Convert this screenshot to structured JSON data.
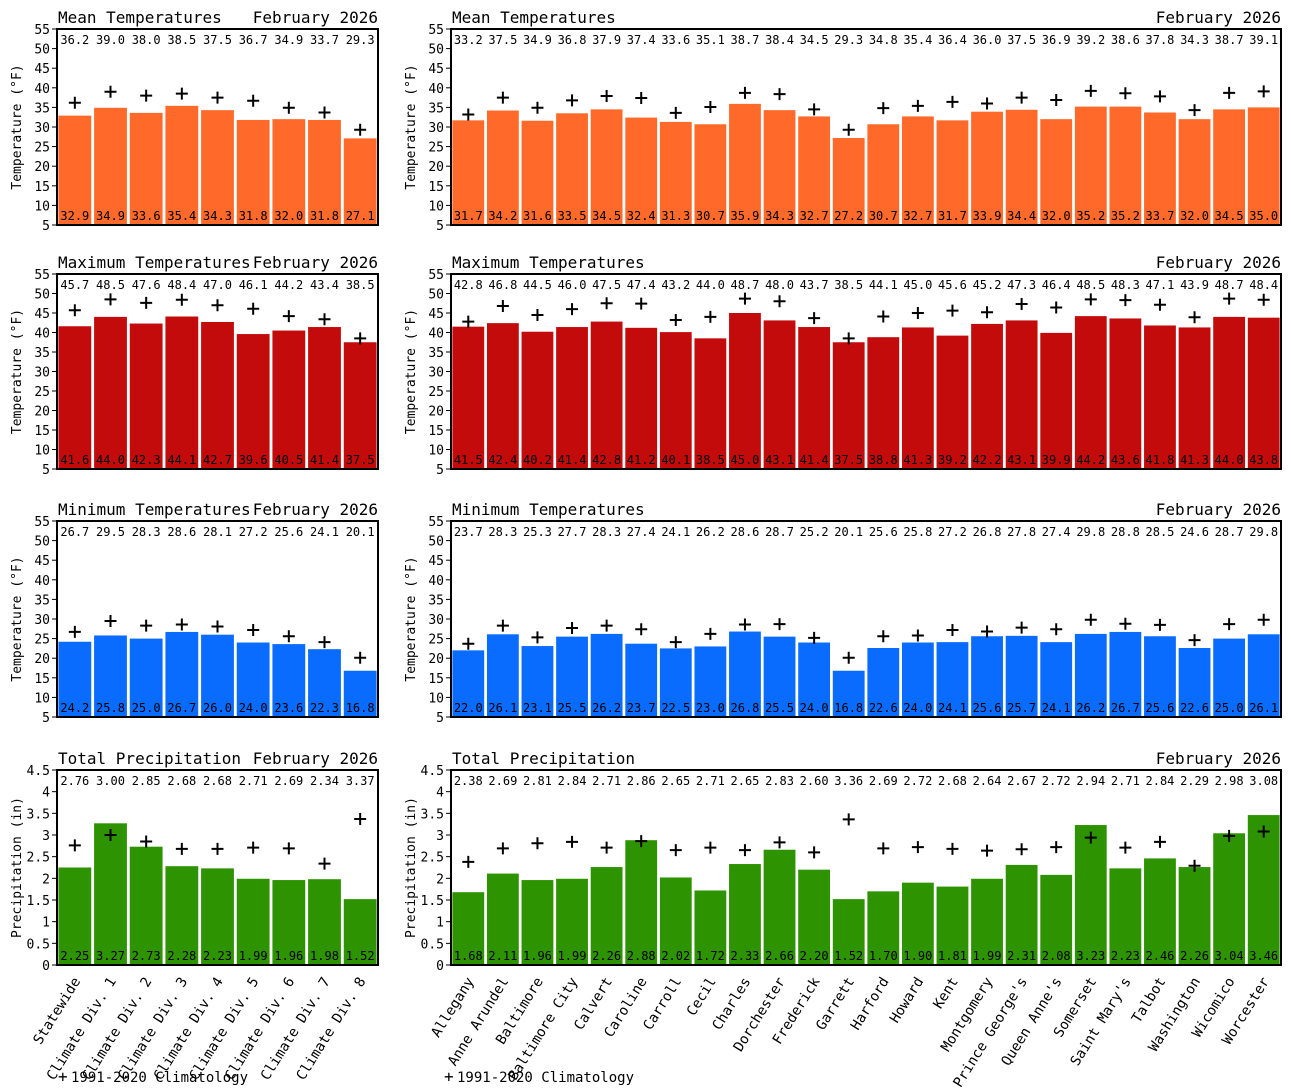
{
  "colors": {
    "mean": "#ff6a2a",
    "max": "#c40b0b",
    "min": "#0a6cff",
    "precip": "#2e9300",
    "axis": "#000000",
    "text": "#000000"
  },
  "legend_text": "1991-2020 Climatology",
  "legend_symbol": "+",
  "region_labels": {
    "divisions": [
      "Statewide",
      "Climate Div. 1",
      "Climate Div. 2",
      "Climate Div. 3",
      "Climate Div. 4",
      "Climate Div. 5",
      "Climate Div. 6",
      "Climate Div. 7",
      "Climate Div. 8"
    ],
    "counties": [
      "Allegany",
      "Anne Arundel",
      "Baltimore",
      "Baltimore City",
      "Calvert",
      "Caroline",
      "Carroll",
      "Cecil",
      "Charles",
      "Dorchester",
      "Frederick",
      "Garrett",
      "Harford",
      "Howard",
      "Kent",
      "Montgomery",
      "Prince George's",
      "Queen Anne's",
      "Somerset",
      "Saint Mary's",
      "Talbot",
      "Washington",
      "Wicomico",
      "Worcester"
    ]
  },
  "chart_data": [
    {
      "id": "mean-div",
      "type": "bar",
      "title": "Mean Temperatures",
      "date": "February 2026",
      "ylabel": "Temperature (°F)",
      "ylim": [
        5,
        55
      ],
      "yticks": [
        5,
        10,
        15,
        20,
        25,
        30,
        35,
        40,
        45,
        50,
        55
      ],
      "categories_key": "divisions",
      "series": [
        {
          "name": "Observed",
          "values": [
            32.9,
            34.9,
            33.6,
            35.4,
            34.3,
            31.8,
            32.0,
            31.8,
            27.1
          ]
        },
        {
          "name": "1991-2020 Climatology",
          "values": [
            36.2,
            39.0,
            38.0,
            38.5,
            37.5,
            36.7,
            34.9,
            33.7,
            29.3
          ]
        }
      ],
      "observed_labels": [
        "32.9",
        "34.9",
        "33.6",
        "35.4",
        "34.3",
        "31.8",
        "32.0",
        "31.8",
        "27.1"
      ],
      "normal_labels": [
        "36.2",
        "39.0",
        "38.0",
        "38.5",
        "37.5",
        "36.7",
        "34.9",
        "33.7",
        "29.3"
      ]
    },
    {
      "id": "mean-cty",
      "type": "bar",
      "title": "Mean Temperatures",
      "date": "February 2026",
      "ylabel": "Temperature (°F)",
      "ylim": [
        5,
        55
      ],
      "yticks": [
        5,
        10,
        15,
        20,
        25,
        30,
        35,
        40,
        45,
        50,
        55
      ],
      "categories_key": "counties",
      "series": [
        {
          "name": "Observed",
          "values": [
            31.7,
            34.2,
            31.6,
            33.5,
            34.5,
            32.4,
            31.3,
            30.7,
            35.9,
            34.3,
            32.7,
            27.2,
            30.7,
            32.7,
            31.7,
            33.9,
            34.4,
            32.0,
            35.2,
            35.2,
            33.7,
            32.0,
            34.5,
            35.0
          ]
        },
        {
          "name": "1991-2020 Climatology",
          "values": [
            33.2,
            37.5,
            34.9,
            36.8,
            37.9,
            37.4,
            33.6,
            35.1,
            38.7,
            38.4,
            34.5,
            29.3,
            34.8,
            35.4,
            36.4,
            36.0,
            37.5,
            36.9,
            39.2,
            38.6,
            37.8,
            34.3,
            38.7,
            39.1
          ]
        }
      ],
      "observed_labels": [
        "31.7",
        "34.2",
        "31.6",
        "33.5",
        "34.5",
        "32.4",
        "31.3",
        "30.7",
        "35.9",
        "34.3",
        "32.7",
        "27.2",
        "30.7",
        "32.7",
        "31.7",
        "33.9",
        "34.4",
        "32.0",
        "35.2",
        "35.2",
        "33.7",
        "32.0",
        "34.5",
        "35.0"
      ],
      "normal_labels": [
        "33.2",
        "37.5",
        "34.9",
        "36.8",
        "37.9",
        "37.4",
        "33.6",
        "35.1",
        "38.7",
        "38.4",
        "34.5",
        "29.3",
        "34.8",
        "35.4",
        "36.4",
        "36.0",
        "37.5",
        "36.9",
        "39.2",
        "38.6",
        "37.8",
        "34.3",
        "38.7",
        "39.1"
      ]
    },
    {
      "id": "max-div",
      "type": "bar",
      "title": "Maximum Temperatures",
      "date": "February 2026",
      "ylabel": "Temperature (°F)",
      "ylim": [
        5,
        55
      ],
      "yticks": [
        5,
        10,
        15,
        20,
        25,
        30,
        35,
        40,
        45,
        50,
        55
      ],
      "categories_key": "divisions",
      "series": [
        {
          "name": "Observed",
          "values": [
            41.6,
            44.0,
            42.3,
            44.1,
            42.7,
            39.6,
            40.5,
            41.4,
            37.5
          ]
        },
        {
          "name": "1991-2020 Climatology",
          "values": [
            45.7,
            48.5,
            47.6,
            48.4,
            47.0,
            46.1,
            44.2,
            43.4,
            38.5
          ]
        }
      ],
      "observed_labels": [
        "41.6",
        "44.0",
        "42.3",
        "44.1",
        "42.7",
        "39.6",
        "40.5",
        "41.4",
        "37.5"
      ],
      "normal_labels": [
        "45.7",
        "48.5",
        "47.6",
        "48.4",
        "47.0",
        "46.1",
        "44.2",
        "43.4",
        "38.5"
      ]
    },
    {
      "id": "max-cty",
      "type": "bar",
      "title": "Maximum Temperatures",
      "date": "February 2026",
      "ylabel": "Temperature (°F)",
      "ylim": [
        5,
        55
      ],
      "yticks": [
        5,
        10,
        15,
        20,
        25,
        30,
        35,
        40,
        45,
        50,
        55
      ],
      "categories_key": "counties",
      "series": [
        {
          "name": "Observed",
          "values": [
            41.5,
            42.4,
            40.2,
            41.4,
            42.8,
            41.2,
            40.1,
            38.5,
            45.0,
            43.1,
            41.4,
            37.5,
            38.8,
            41.3,
            39.2,
            42.2,
            43.1,
            39.9,
            44.2,
            43.6,
            41.8,
            41.3,
            44.0,
            43.8
          ]
        },
        {
          "name": "1991-2020 Climatology",
          "values": [
            42.8,
            46.8,
            44.5,
            46.0,
            47.5,
            47.4,
            43.2,
            44.0,
            48.7,
            48.0,
            43.7,
            38.5,
            44.1,
            45.0,
            45.6,
            45.2,
            47.3,
            46.4,
            48.5,
            48.3,
            47.1,
            43.9,
            48.7,
            48.4
          ]
        }
      ],
      "observed_labels": [
        "41.5",
        "42.4",
        "40.2",
        "41.4",
        "42.8",
        "41.2",
        "40.1",
        "38.5",
        "45.0",
        "43.1",
        "41.4",
        "37.5",
        "38.8",
        "41.3",
        "39.2",
        "42.2",
        "43.1",
        "39.9",
        "44.2",
        "43.6",
        "41.8",
        "41.3",
        "44.0",
        "43.8"
      ],
      "normal_labels": [
        "42.8",
        "46.8",
        "44.5",
        "46.0",
        "47.5",
        "47.4",
        "43.2",
        "44.0",
        "48.7",
        "48.0",
        "43.7",
        "38.5",
        "44.1",
        "45.0",
        "45.6",
        "45.2",
        "47.3",
        "46.4",
        "48.5",
        "48.3",
        "47.1",
        "43.9",
        "48.7",
        "48.4"
      ]
    },
    {
      "id": "min-div",
      "type": "bar",
      "title": "Minimum Temperatures",
      "date": "February 2026",
      "ylabel": "Temperature (°F)",
      "ylim": [
        5,
        55
      ],
      "yticks": [
        5,
        10,
        15,
        20,
        25,
        30,
        35,
        40,
        45,
        50,
        55
      ],
      "categories_key": "divisions",
      "series": [
        {
          "name": "Observed",
          "values": [
            24.2,
            25.8,
            25.0,
            26.7,
            26.0,
            24.0,
            23.6,
            22.3,
            16.8
          ]
        },
        {
          "name": "1991-2020 Climatology",
          "values": [
            26.7,
            29.5,
            28.3,
            28.6,
            28.1,
            27.2,
            25.6,
            24.1,
            20.1
          ]
        }
      ],
      "observed_labels": [
        "24.2",
        "25.8",
        "25.0",
        "26.7",
        "26.0",
        "24.0",
        "23.6",
        "22.3",
        "16.8"
      ],
      "normal_labels": [
        "26.7",
        "29.5",
        "28.3",
        "28.6",
        "28.1",
        "27.2",
        "25.6",
        "24.1",
        "20.1"
      ]
    },
    {
      "id": "min-cty",
      "type": "bar",
      "title": "Minimum Temperatures",
      "date": "February 2026",
      "ylabel": "Temperature (°F)",
      "ylim": [
        5,
        55
      ],
      "yticks": [
        5,
        10,
        15,
        20,
        25,
        30,
        35,
        40,
        45,
        50,
        55
      ],
      "categories_key": "counties",
      "series": [
        {
          "name": "Observed",
          "values": [
            22.0,
            26.1,
            23.1,
            25.5,
            26.2,
            23.7,
            22.5,
            23.0,
            26.8,
            25.5,
            24.0,
            16.8,
            22.6,
            24.0,
            24.1,
            25.6,
            25.7,
            24.1,
            26.2,
            26.7,
            25.6,
            22.6,
            25.0,
            26.1
          ]
        },
        {
          "name": "1991-2020 Climatology",
          "values": [
            23.7,
            28.3,
            25.3,
            27.7,
            28.3,
            27.4,
            24.1,
            26.2,
            28.6,
            28.7,
            25.2,
            20.1,
            25.6,
            25.8,
            27.2,
            26.8,
            27.8,
            27.4,
            29.8,
            28.8,
            28.5,
            24.6,
            28.7,
            29.8
          ]
        }
      ],
      "observed_labels": [
        "22.0",
        "26.1",
        "23.1",
        "25.5",
        "26.2",
        "23.7",
        "22.5",
        "23.0",
        "26.8",
        "25.5",
        "24.0",
        "16.8",
        "22.6",
        "24.0",
        "24.1",
        "25.6",
        "25.7",
        "24.1",
        "26.2",
        "26.7",
        "25.6",
        "22.6",
        "25.0",
        "26.1"
      ],
      "normal_labels": [
        "23.7",
        "28.3",
        "25.3",
        "27.7",
        "28.3",
        "27.4",
        "24.1",
        "26.2",
        "28.6",
        "28.7",
        "25.2",
        "20.1",
        "25.6",
        "25.8",
        "27.2",
        "26.8",
        "27.8",
        "27.4",
        "29.8",
        "28.8",
        "28.5",
        "24.6",
        "28.7",
        "29.8"
      ]
    },
    {
      "id": "precip-div",
      "type": "bar",
      "title": "Total Precipitation",
      "date": "February 2026",
      "ylabel": "Precipitation (in)",
      "ylim": [
        0,
        4.5
      ],
      "yticks": [
        0,
        0.5,
        1,
        1.5,
        2,
        2.5,
        3,
        3.5,
        4,
        4.5
      ],
      "categories_key": "divisions",
      "series": [
        {
          "name": "Observed",
          "values": [
            2.25,
            3.27,
            2.73,
            2.28,
            2.23,
            1.99,
            1.96,
            1.98,
            1.52
          ]
        },
        {
          "name": "1991-2020 Climatology",
          "values": [
            2.76,
            3.0,
            2.85,
            2.68,
            2.68,
            2.71,
            2.69,
            2.34,
            3.37
          ]
        }
      ],
      "observed_labels": [
        "2.25",
        "3.27",
        "2.73",
        "2.28",
        "2.23",
        "1.99",
        "1.96",
        "1.98",
        "1.52"
      ],
      "normal_labels": [
        "2.76",
        "3.00",
        "2.85",
        "2.68",
        "2.68",
        "2.71",
        "2.69",
        "2.34",
        "3.37"
      ]
    },
    {
      "id": "precip-cty",
      "type": "bar",
      "title": "Total Precipitation",
      "date": "February 2026",
      "ylabel": "Precipitation (in)",
      "ylim": [
        0,
        4.5
      ],
      "yticks": [
        0,
        0.5,
        1,
        1.5,
        2,
        2.5,
        3,
        3.5,
        4,
        4.5
      ],
      "categories_key": "counties",
      "series": [
        {
          "name": "Observed",
          "values": [
            1.68,
            2.11,
            1.96,
            1.99,
            2.26,
            2.88,
            2.02,
            1.72,
            2.33,
            2.66,
            2.2,
            1.52,
            1.7,
            1.9,
            1.81,
            1.99,
            2.31,
            2.08,
            3.23,
            2.23,
            2.46,
            2.26,
            3.04,
            3.46
          ]
        },
        {
          "name": "1991-2020 Climatology",
          "values": [
            2.38,
            2.69,
            2.81,
            2.84,
            2.71,
            2.86,
            2.65,
            2.71,
            2.65,
            2.83,
            2.6,
            3.36,
            2.69,
            2.72,
            2.68,
            2.64,
            2.67,
            2.72,
            2.94,
            2.71,
            2.84,
            2.29,
            2.98,
            3.08
          ]
        }
      ],
      "observed_labels": [
        "1.68",
        "2.11",
        "1.96",
        "1.99",
        "2.26",
        "2.88",
        "2.02",
        "1.72",
        "2.33",
        "2.66",
        "2.20",
        "1.52",
        "1.70",
        "1.90",
        "1.81",
        "1.99",
        "2.31",
        "2.08",
        "3.23",
        "2.23",
        "2.46",
        "2.26",
        "3.04",
        "3.46"
      ],
      "normal_labels": [
        "2.38",
        "2.69",
        "2.81",
        "2.84",
        "2.71",
        "2.86",
        "2.65",
        "2.71",
        "2.65",
        "2.83",
        "2.60",
        "3.36",
        "2.69",
        "2.72",
        "2.68",
        "2.64",
        "2.67",
        "2.72",
        "2.94",
        "2.71",
        "2.84",
        "2.29",
        "2.98",
        "3.08"
      ]
    }
  ]
}
